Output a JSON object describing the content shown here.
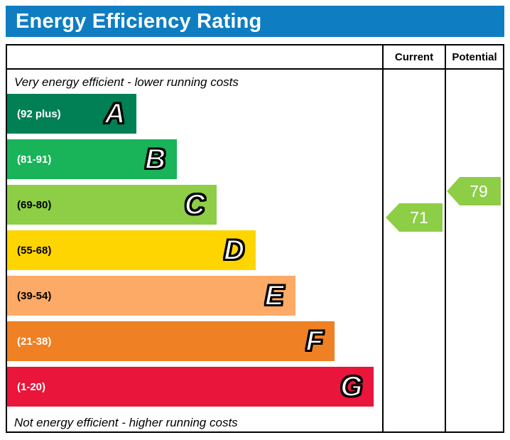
{
  "title": "Energy Efficiency Rating",
  "columns": {
    "current": "Current",
    "potential": "Potential"
  },
  "notes": {
    "top": "Very energy efficient - lower running costs",
    "bottom": "Not energy efficient - higher running costs"
  },
  "bands": [
    {
      "letter": "A",
      "range_label": "(92 plus)",
      "color": "#008054",
      "text_color": "#ffffff",
      "width_pct": 34.5
    },
    {
      "letter": "B",
      "range_label": "(81-91)",
      "color": "#19b459",
      "text_color": "#ffffff",
      "width_pct": 45.3
    },
    {
      "letter": "C",
      "range_label": "(69-80)",
      "color": "#8dce46",
      "text_color": "#000000",
      "width_pct": 55.8
    },
    {
      "letter": "D",
      "range_label": "(55-68)",
      "color": "#ffd500",
      "text_color": "#000000",
      "width_pct": 66.3
    },
    {
      "letter": "E",
      "range_label": "(39-54)",
      "color": "#fcaa65",
      "text_color": "#000000",
      "width_pct": 76.8
    },
    {
      "letter": "F",
      "range_label": "(21-38)",
      "color": "#ef8023",
      "text_color": "#ffffff",
      "width_pct": 87.3
    },
    {
      "letter": "G",
      "range_label": "(1-20)",
      "color": "#e9153b",
      "text_color": "#ffffff",
      "width_pct": 97.8
    }
  ],
  "scores": {
    "current": {
      "value": "71",
      "band": "C",
      "color": "#8dce46"
    },
    "potential": {
      "value": "79",
      "band": "C",
      "color": "#8dce46"
    }
  },
  "chart_data": {
    "type": "bar",
    "title": "Energy Efficiency Rating",
    "categories": [
      "A",
      "B",
      "C",
      "D",
      "E",
      "F",
      "G"
    ],
    "band_ranges": [
      "92 plus",
      "81-91",
      "69-80",
      "55-68",
      "39-54",
      "21-38",
      "1-20"
    ],
    "band_colors": [
      "#008054",
      "#19b459",
      "#8dce46",
      "#ffd500",
      "#fcaa65",
      "#ef8023",
      "#e9153b"
    ],
    "series": [
      {
        "name": "Current",
        "values": [
          71
        ]
      },
      {
        "name": "Potential",
        "values": [
          79
        ]
      }
    ],
    "annotations": [
      "Very energy efficient - lower running costs",
      "Not energy efficient - higher running costs"
    ],
    "legend_position": "top-right-columns",
    "grid": false
  }
}
